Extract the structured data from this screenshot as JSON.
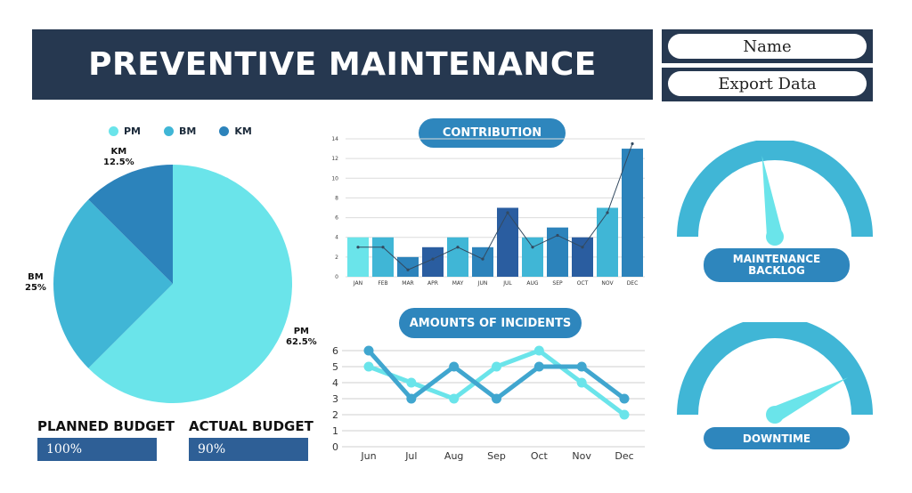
{
  "header": {
    "title": "PREVENTIVE MAINTENANCE"
  },
  "side_buttons": {
    "name_label": "Name",
    "export_label": "Export Data"
  },
  "pie": {
    "legend": [
      {
        "label": "PM",
        "color": "#6ae4ea"
      },
      {
        "label": "BM",
        "color": "#40b6d6"
      },
      {
        "label": "KM",
        "color": "#2c83bb"
      }
    ],
    "slices": [
      {
        "label": "PM",
        "percent_text": "62.5%",
        "value": 62.5,
        "color": "#6ae4ea"
      },
      {
        "label": "BM",
        "percent_text": "25%",
        "value": 25,
        "color": "#40b6d6"
      },
      {
        "label": "KM",
        "percent_text": "12.5%",
        "value": 12.5,
        "color": "#2c83bb"
      }
    ]
  },
  "budget": {
    "planned_label": "PLANNED BUDGET",
    "planned_value": "100%",
    "planned_fraction": 1.0,
    "actual_label": "ACTUAL BUDGET",
    "actual_value": "90%",
    "actual_fraction": 0.9
  },
  "contribution": {
    "title": "CONTRIBUTION"
  },
  "incidents": {
    "title": "AMOUNTS OF INCIDENTS"
  },
  "gauges": {
    "backlog_label": "MAINTENANCE BACKLOG",
    "backlog_level": 0.45,
    "downtime_label": "DOWNTIME",
    "downtime_level": 0.85
  },
  "chart_data": [
    {
      "type": "bar",
      "title": "CONTRIBUTION",
      "categories": [
        "JAN",
        "FEB",
        "MAR",
        "APR",
        "MAY",
        "JUN",
        "JUL",
        "AUG",
        "SEP",
        "OCT",
        "NOV",
        "DEC"
      ],
      "series": [
        {
          "values": [
            4,
            4,
            2,
            3,
            4,
            3,
            7,
            4,
            5,
            4,
            7,
            13
          ]
        },
        {
          "values": [
            3,
            3,
            0.7,
            1.8,
            3,
            1.8,
            6.5,
            3,
            4.2,
            3,
            6.5,
            13.5
          ]
        }
      ],
      "bar_colors": [
        "#6ae4ea",
        "#40b6d6",
        "#2c83bb",
        "#2a5da0",
        "#40b6d6",
        "#2c83bb",
        "#2a5da0",
        "#40b6d6",
        "#2c83bb",
        "#2a5da0",
        "#40b6d6",
        "#2c83bb"
      ],
      "yticks": [
        "0",
        "2",
        "4",
        "6",
        "8",
        "10",
        "12",
        "14"
      ],
      "ylim": [
        0,
        14
      ],
      "grid": true
    },
    {
      "type": "line",
      "title": "AMOUNTS OF INCIDENTS",
      "categories": [
        "Jun",
        "Jul",
        "Aug",
        "Sep",
        "Oct",
        "Nov",
        "Dec"
      ],
      "series": [
        {
          "values": [
            5,
            4,
            3,
            5,
            6,
            4,
            2
          ],
          "color": "#6ae4ea"
        },
        {
          "values": [
            6,
            3,
            5,
            3,
            5,
            5,
            3
          ],
          "color": "#40a6cf"
        }
      ],
      "yticks": [
        "0",
        "1",
        "2",
        "3",
        "4",
        "5",
        "6"
      ],
      "ylim": [
        0,
        6
      ],
      "grid": true
    }
  ]
}
